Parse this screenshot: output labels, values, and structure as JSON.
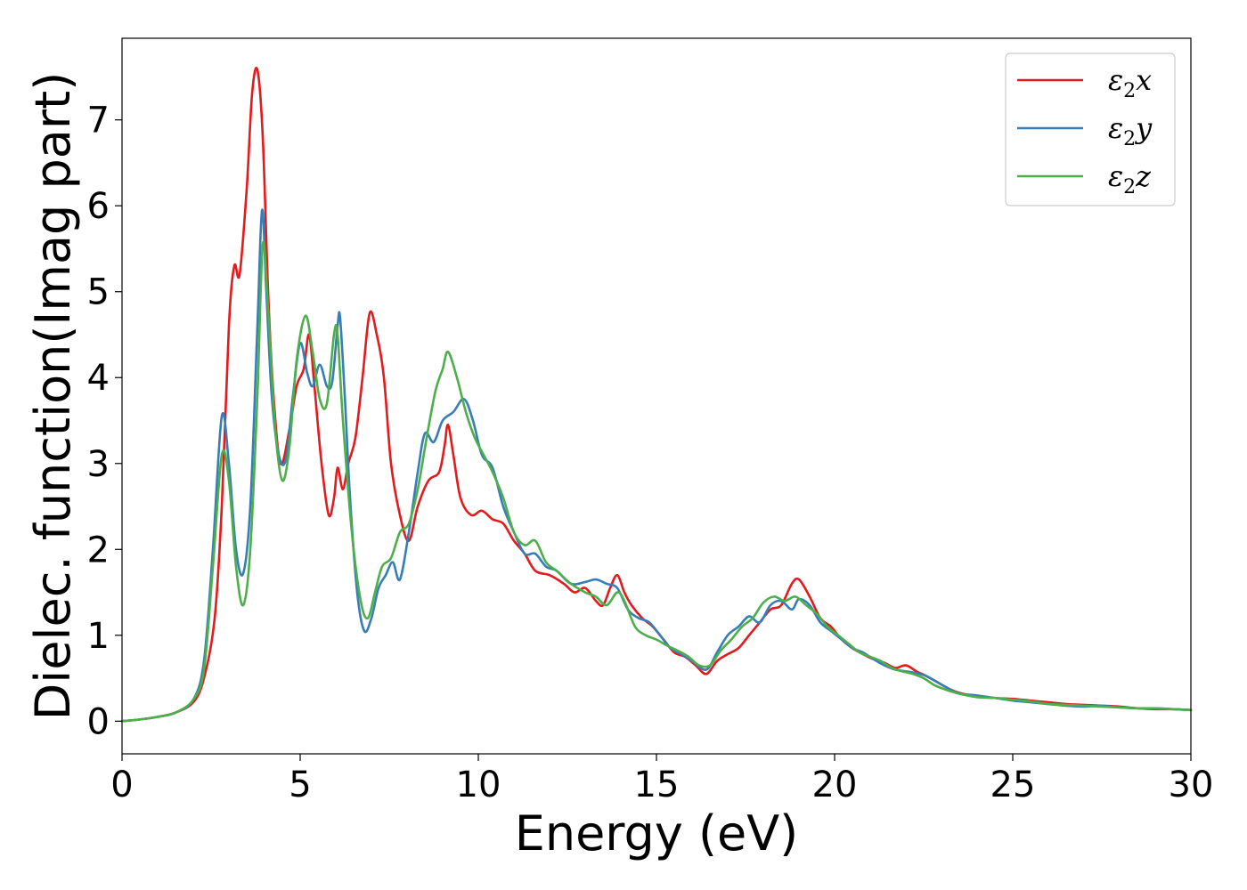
{
  "chart_data": {
    "type": "line",
    "xlabel": "Energy (eV)",
    "ylabel": "Dielec. function(Imag part)",
    "xlim": [
      0,
      30
    ],
    "ylim": [
      -0.38,
      7.95
    ],
    "xticks": [
      0,
      5,
      10,
      15,
      20,
      25,
      30
    ],
    "yticks": [
      0,
      1,
      2,
      3,
      4,
      5,
      6,
      7
    ],
    "grid": false,
    "legend_position": "top-right",
    "series": [
      {
        "name": "ε₂x",
        "legend": {
          "symbol": "ε",
          "sub": "2",
          "var": "x"
        },
        "color": "#e41a1c",
        "points": [
          [
            0,
            0
          ],
          [
            0.5,
            0.02
          ],
          [
            1,
            0.05
          ],
          [
            1.5,
            0.1
          ],
          [
            2,
            0.22
          ],
          [
            2.3,
            0.5
          ],
          [
            2.6,
            1.2
          ],
          [
            2.8,
            2.5
          ],
          [
            3.0,
            4.6
          ],
          [
            3.15,
            5.3
          ],
          [
            3.3,
            5.2
          ],
          [
            3.5,
            6.2
          ],
          [
            3.65,
            7.3
          ],
          [
            3.8,
            7.58
          ],
          [
            3.95,
            6.8
          ],
          [
            4.1,
            5.0
          ],
          [
            4.25,
            3.8
          ],
          [
            4.45,
            3.0
          ],
          [
            4.7,
            3.4
          ],
          [
            4.9,
            3.9
          ],
          [
            5.1,
            4.1
          ],
          [
            5.25,
            4.5
          ],
          [
            5.4,
            3.9
          ],
          [
            5.6,
            3.0
          ],
          [
            5.8,
            2.4
          ],
          [
            5.95,
            2.6
          ],
          [
            6.05,
            2.95
          ],
          [
            6.2,
            2.7
          ],
          [
            6.35,
            3.0
          ],
          [
            6.55,
            3.3
          ],
          [
            6.75,
            4.0
          ],
          [
            6.95,
            4.75
          ],
          [
            7.15,
            4.5
          ],
          [
            7.35,
            4.0
          ],
          [
            7.55,
            3.0
          ],
          [
            7.8,
            2.4
          ],
          [
            8.05,
            2.1
          ],
          [
            8.3,
            2.5
          ],
          [
            8.6,
            2.8
          ],
          [
            8.9,
            2.9
          ],
          [
            9.05,
            3.2
          ],
          [
            9.15,
            3.45
          ],
          [
            9.3,
            3.1
          ],
          [
            9.5,
            2.6
          ],
          [
            9.8,
            2.4
          ],
          [
            10.1,
            2.45
          ],
          [
            10.4,
            2.35
          ],
          [
            10.7,
            2.3
          ],
          [
            11.0,
            2.1
          ],
          [
            11.3,
            1.95
          ],
          [
            11.6,
            1.75
          ],
          [
            12.0,
            1.7
          ],
          [
            12.4,
            1.6
          ],
          [
            12.7,
            1.5
          ],
          [
            13.0,
            1.55
          ],
          [
            13.3,
            1.4
          ],
          [
            13.5,
            1.35
          ],
          [
            13.7,
            1.55
          ],
          [
            13.9,
            1.7
          ],
          [
            14.1,
            1.5
          ],
          [
            14.3,
            1.35
          ],
          [
            14.6,
            1.2
          ],
          [
            14.9,
            1.1
          ],
          [
            15.2,
            0.95
          ],
          [
            15.5,
            0.8
          ],
          [
            15.8,
            0.75
          ],
          [
            16.1,
            0.65
          ],
          [
            16.4,
            0.55
          ],
          [
            16.7,
            0.7
          ],
          [
            17.0,
            0.78
          ],
          [
            17.3,
            0.85
          ],
          [
            17.6,
            1.0
          ],
          [
            17.9,
            1.15
          ],
          [
            18.2,
            1.3
          ],
          [
            18.5,
            1.35
          ],
          [
            18.8,
            1.6
          ],
          [
            19.0,
            1.65
          ],
          [
            19.3,
            1.45
          ],
          [
            19.6,
            1.2
          ],
          [
            19.9,
            1.1
          ],
          [
            20.2,
            0.95
          ],
          [
            20.5,
            0.85
          ],
          [
            20.8,
            0.78
          ],
          [
            21.1,
            0.72
          ],
          [
            21.4,
            0.68
          ],
          [
            21.7,
            0.62
          ],
          [
            22.0,
            0.65
          ],
          [
            22.3,
            0.58
          ],
          [
            22.6,
            0.52
          ],
          [
            22.9,
            0.45
          ],
          [
            23.2,
            0.38
          ],
          [
            23.5,
            0.33
          ],
          [
            24.0,
            0.29
          ],
          [
            24.5,
            0.27
          ],
          [
            25.0,
            0.26
          ],
          [
            25.5,
            0.24
          ],
          [
            26.0,
            0.22
          ],
          [
            26.5,
            0.2
          ],
          [
            27.0,
            0.19
          ],
          [
            27.5,
            0.18
          ],
          [
            28.0,
            0.17
          ],
          [
            28.5,
            0.15
          ],
          [
            29.0,
            0.14
          ],
          [
            29.5,
            0.14
          ],
          [
            30.0,
            0.13
          ]
        ]
      },
      {
        "name": "ε₂y",
        "legend": {
          "symbol": "ε",
          "sub": "2",
          "var": "y"
        },
        "color": "#377eb8",
        "points": [
          [
            0,
            0
          ],
          [
            0.5,
            0.02
          ],
          [
            1,
            0.05
          ],
          [
            1.5,
            0.1
          ],
          [
            2,
            0.25
          ],
          [
            2.3,
            0.7
          ],
          [
            2.55,
            2.0
          ],
          [
            2.8,
            3.55
          ],
          [
            3.0,
            3.0
          ],
          [
            3.2,
            2.0
          ],
          [
            3.4,
            1.72
          ],
          [
            3.6,
            2.5
          ],
          [
            3.8,
            4.6
          ],
          [
            3.93,
            5.95
          ],
          [
            4.05,
            5.0
          ],
          [
            4.2,
            3.8
          ],
          [
            4.4,
            3.1
          ],
          [
            4.6,
            3.05
          ],
          [
            4.8,
            3.8
          ],
          [
            5.0,
            4.4
          ],
          [
            5.2,
            4.05
          ],
          [
            5.35,
            3.9
          ],
          [
            5.55,
            4.15
          ],
          [
            5.75,
            3.9
          ],
          [
            5.9,
            3.95
          ],
          [
            6.05,
            4.6
          ],
          [
            6.12,
            4.7
          ],
          [
            6.25,
            3.8
          ],
          [
            6.4,
            2.6
          ],
          [
            6.6,
            1.5
          ],
          [
            6.8,
            1.05
          ],
          [
            7.0,
            1.2
          ],
          [
            7.2,
            1.55
          ],
          [
            7.4,
            1.7
          ],
          [
            7.6,
            1.85
          ],
          [
            7.8,
            1.65
          ],
          [
            8.05,
            2.2
          ],
          [
            8.3,
            2.9
          ],
          [
            8.5,
            3.35
          ],
          [
            8.75,
            3.25
          ],
          [
            9.0,
            3.5
          ],
          [
            9.3,
            3.6
          ],
          [
            9.6,
            3.75
          ],
          [
            9.85,
            3.5
          ],
          [
            10.1,
            3.1
          ],
          [
            10.4,
            2.95
          ],
          [
            10.7,
            2.5
          ],
          [
            11.0,
            2.2
          ],
          [
            11.3,
            1.95
          ],
          [
            11.6,
            1.95
          ],
          [
            11.9,
            1.8
          ],
          [
            12.2,
            1.75
          ],
          [
            12.6,
            1.6
          ],
          [
            13.0,
            1.62
          ],
          [
            13.3,
            1.65
          ],
          [
            13.6,
            1.6
          ],
          [
            13.9,
            1.55
          ],
          [
            14.2,
            1.3
          ],
          [
            14.5,
            1.2
          ],
          [
            14.8,
            1.15
          ],
          [
            15.1,
            1.0
          ],
          [
            15.4,
            0.85
          ],
          [
            15.7,
            0.78
          ],
          [
            16.0,
            0.7
          ],
          [
            16.4,
            0.6
          ],
          [
            16.7,
            0.8
          ],
          [
            17.0,
            1.0
          ],
          [
            17.3,
            1.1
          ],
          [
            17.6,
            1.22
          ],
          [
            17.9,
            1.15
          ],
          [
            18.2,
            1.35
          ],
          [
            18.5,
            1.4
          ],
          [
            18.8,
            1.3
          ],
          [
            19.0,
            1.42
          ],
          [
            19.3,
            1.35
          ],
          [
            19.6,
            1.15
          ],
          [
            19.9,
            1.05
          ],
          [
            20.2,
            0.95
          ],
          [
            20.5,
            0.85
          ],
          [
            20.8,
            0.8
          ],
          [
            21.1,
            0.72
          ],
          [
            21.4,
            0.65
          ],
          [
            21.7,
            0.6
          ],
          [
            22.0,
            0.58
          ],
          [
            22.3,
            0.56
          ],
          [
            22.6,
            0.52
          ],
          [
            22.9,
            0.45
          ],
          [
            23.2,
            0.38
          ],
          [
            23.5,
            0.32
          ],
          [
            24.0,
            0.3
          ],
          [
            24.5,
            0.27
          ],
          [
            25.0,
            0.24
          ],
          [
            25.5,
            0.22
          ],
          [
            26.0,
            0.2
          ],
          [
            26.5,
            0.18
          ],
          [
            27.0,
            0.17
          ],
          [
            27.5,
            0.18
          ],
          [
            28.0,
            0.16
          ],
          [
            28.5,
            0.15
          ],
          [
            29.0,
            0.15
          ],
          [
            29.5,
            0.14
          ],
          [
            30.0,
            0.13
          ]
        ]
      },
      {
        "name": "ε₂z",
        "legend": {
          "symbol": "ε",
          "sub": "2",
          "var": "z"
        },
        "color": "#4daf4a",
        "points": [
          [
            0,
            0
          ],
          [
            0.5,
            0.02
          ],
          [
            1,
            0.05
          ],
          [
            1.5,
            0.1
          ],
          [
            2,
            0.25
          ],
          [
            2.3,
            0.6
          ],
          [
            2.55,
            1.8
          ],
          [
            2.8,
            3.1
          ],
          [
            3.0,
            2.8
          ],
          [
            3.2,
            1.8
          ],
          [
            3.4,
            1.35
          ],
          [
            3.6,
            2.0
          ],
          [
            3.8,
            3.8
          ],
          [
            3.95,
            5.55
          ],
          [
            4.1,
            4.8
          ],
          [
            4.3,
            3.4
          ],
          [
            4.5,
            2.8
          ],
          [
            4.7,
            3.2
          ],
          [
            4.9,
            4.2
          ],
          [
            5.15,
            4.72
          ],
          [
            5.35,
            4.3
          ],
          [
            5.55,
            3.75
          ],
          [
            5.75,
            3.7
          ],
          [
            5.95,
            4.5
          ],
          [
            6.05,
            4.5
          ],
          [
            6.2,
            3.5
          ],
          [
            6.45,
            2.2
          ],
          [
            6.7,
            1.4
          ],
          [
            6.9,
            1.2
          ],
          [
            7.1,
            1.5
          ],
          [
            7.3,
            1.8
          ],
          [
            7.55,
            1.9
          ],
          [
            7.8,
            2.2
          ],
          [
            8.05,
            2.3
          ],
          [
            8.3,
            2.7
          ],
          [
            8.55,
            3.3
          ],
          [
            8.8,
            3.85
          ],
          [
            9.0,
            4.1
          ],
          [
            9.15,
            4.3
          ],
          [
            9.4,
            4.0
          ],
          [
            9.65,
            3.6
          ],
          [
            9.9,
            3.3
          ],
          [
            10.15,
            3.1
          ],
          [
            10.4,
            2.9
          ],
          [
            10.7,
            2.6
          ],
          [
            11.0,
            2.2
          ],
          [
            11.3,
            2.05
          ],
          [
            11.6,
            2.1
          ],
          [
            11.9,
            1.85
          ],
          [
            12.2,
            1.75
          ],
          [
            12.6,
            1.6
          ],
          [
            13.0,
            1.5
          ],
          [
            13.3,
            1.45
          ],
          [
            13.6,
            1.35
          ],
          [
            13.9,
            1.5
          ],
          [
            14.1,
            1.4
          ],
          [
            14.4,
            1.1
          ],
          [
            14.7,
            1.0
          ],
          [
            15.0,
            0.95
          ],
          [
            15.3,
            0.88
          ],
          [
            15.6,
            0.82
          ],
          [
            15.9,
            0.75
          ],
          [
            16.2,
            0.65
          ],
          [
            16.5,
            0.65
          ],
          [
            16.8,
            0.82
          ],
          [
            17.1,
            0.95
          ],
          [
            17.4,
            1.1
          ],
          [
            17.7,
            1.2
          ],
          [
            18.0,
            1.38
          ],
          [
            18.3,
            1.45
          ],
          [
            18.6,
            1.4
          ],
          [
            18.9,
            1.45
          ],
          [
            19.2,
            1.35
          ],
          [
            19.5,
            1.25
          ],
          [
            19.8,
            1.1
          ],
          [
            20.1,
            1.0
          ],
          [
            20.4,
            0.9
          ],
          [
            20.7,
            0.8
          ],
          [
            21.0,
            0.75
          ],
          [
            21.3,
            0.7
          ],
          [
            21.6,
            0.62
          ],
          [
            21.9,
            0.58
          ],
          [
            22.2,
            0.55
          ],
          [
            22.5,
            0.5
          ],
          [
            22.8,
            0.42
          ],
          [
            23.1,
            0.37
          ],
          [
            23.5,
            0.32
          ],
          [
            24.0,
            0.28
          ],
          [
            24.5,
            0.27
          ],
          [
            25.0,
            0.25
          ],
          [
            25.5,
            0.23
          ],
          [
            26.0,
            0.2
          ],
          [
            26.5,
            0.19
          ],
          [
            27.0,
            0.18
          ],
          [
            27.5,
            0.17
          ],
          [
            28.0,
            0.16
          ],
          [
            28.5,
            0.15
          ],
          [
            29.0,
            0.15
          ],
          [
            29.5,
            0.14
          ],
          [
            30.0,
            0.13
          ]
        ]
      }
    ]
  }
}
